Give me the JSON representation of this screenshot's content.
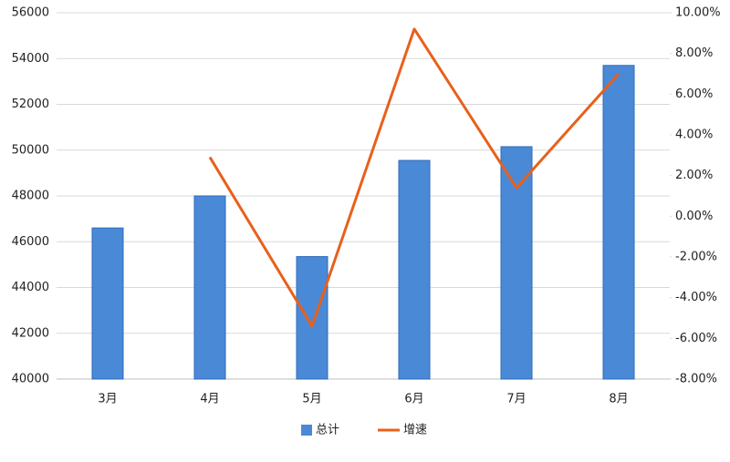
{
  "chart_data": {
    "type": "bar-line",
    "categories": [
      "3月",
      "4月",
      "5月",
      "6月",
      "7月",
      "8月"
    ],
    "series": [
      {
        "name": "总计",
        "type": "bar",
        "color": "#4a89d6",
        "values": [
          46600,
          48000,
          45350,
          49550,
          50150,
          53700
        ]
      },
      {
        "name": "增速",
        "type": "line",
        "axis": "y2",
        "color": "#e8601c",
        "values": [
          null,
          2.9,
          -5.4,
          9.2,
          1.4,
          7.0
        ]
      }
    ],
    "ylim": [
      40000,
      56000
    ],
    "yticks": [
      40000,
      42000,
      44000,
      46000,
      48000,
      50000,
      52000,
      54000,
      56000
    ],
    "y2lim": [
      -8,
      10
    ],
    "y2ticks": [
      {
        "value": -8,
        "label": "-8.00%"
      },
      {
        "value": -6,
        "label": "-6.00%"
      },
      {
        "value": -4,
        "label": "-4.00%"
      },
      {
        "value": -2,
        "label": "-2.00%"
      },
      {
        "value": 0,
        "label": "0.00%"
      },
      {
        "value": 2,
        "label": "2.00%"
      },
      {
        "value": 4,
        "label": "4.00%"
      },
      {
        "value": 6,
        "label": "6.00%"
      },
      {
        "value": 8,
        "label": "8.00%"
      },
      {
        "value": 10,
        "label": "10.00%"
      }
    ],
    "grid": true,
    "legend": "bottom"
  }
}
